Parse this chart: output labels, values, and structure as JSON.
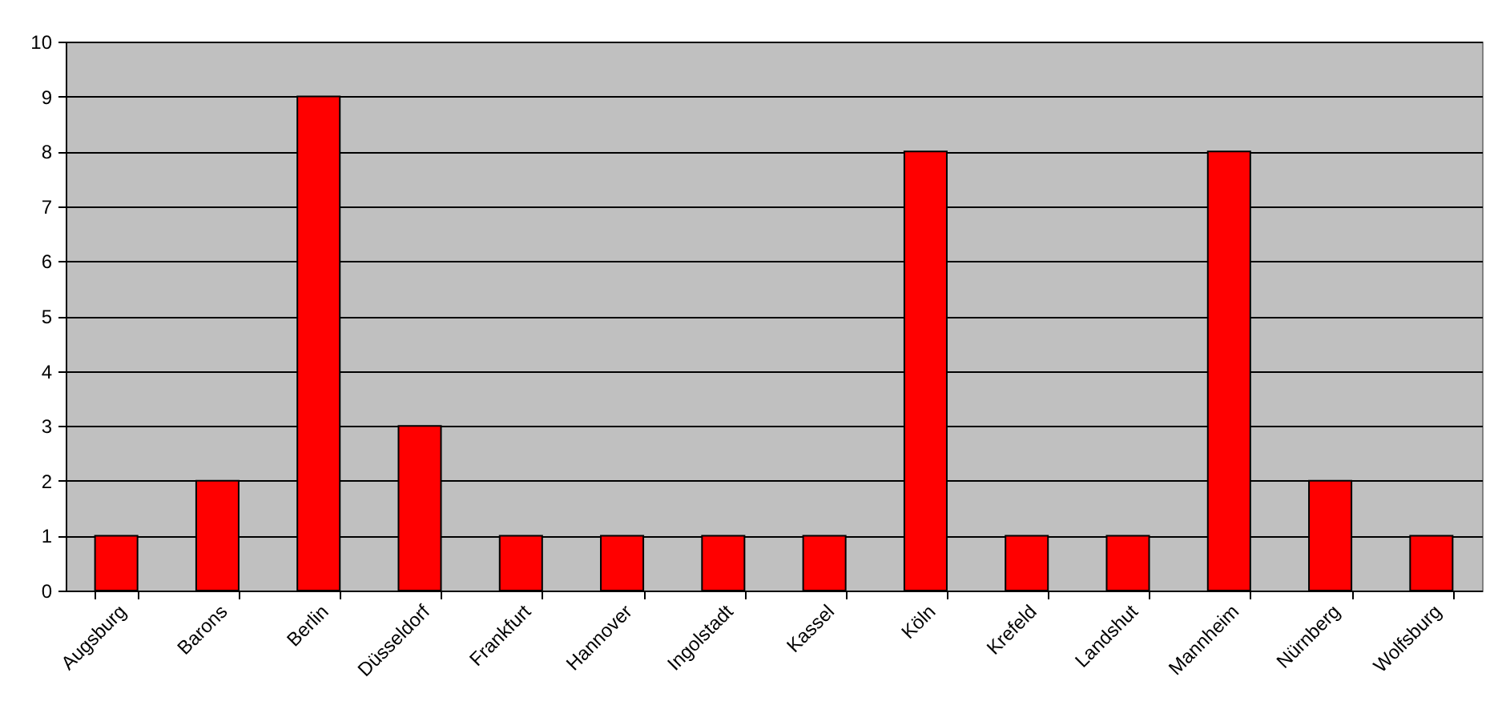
{
  "chart_data": {
    "type": "bar",
    "categories": [
      "Augsburg",
      "Barons",
      "Berlin",
      "Düsseldorf",
      "Frankfurt",
      "Hannover",
      "Ingolstadt",
      "Kassel",
      "Köln",
      "Krefeld",
      "Landshut",
      "Mannheim",
      "Nürnberg",
      "Wolfsburg"
    ],
    "values": [
      1,
      2,
      9,
      3,
      1,
      1,
      1,
      1,
      8,
      1,
      1,
      8,
      2,
      1
    ],
    "color": "#ff0000",
    "ylim": [
      0,
      10
    ],
    "yticks": [
      0,
      1,
      2,
      3,
      4,
      5,
      6,
      7,
      8,
      9,
      10
    ],
    "grid": "y"
  }
}
